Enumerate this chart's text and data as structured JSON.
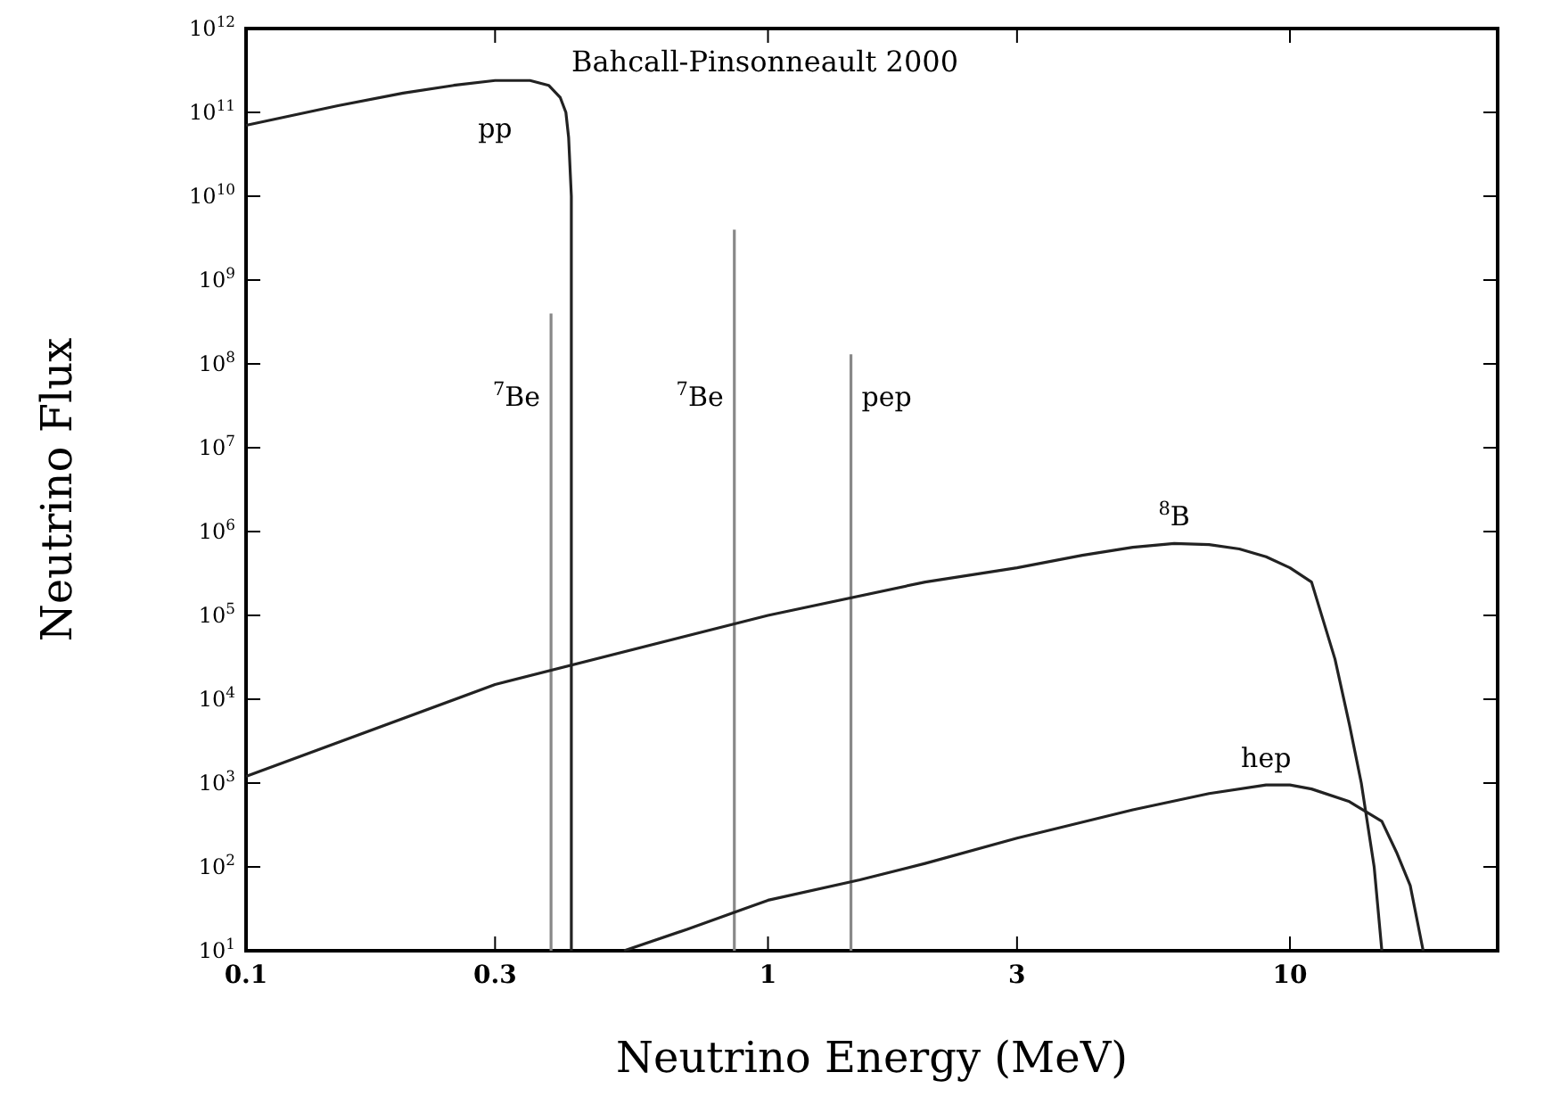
{
  "chart_data": {
    "type": "line",
    "title": "Bahcall-Pinsonneault 2000",
    "xlabel": "Neutrino Energy (MeV)",
    "ylabel": "Neutrino Flux",
    "log": "xy",
    "marker": "none",
    "line_style": "solid",
    "xlim": [
      0.1,
      25
    ],
    "xticks": [
      0.1,
      0.3,
      1,
      3,
      10
    ],
    "ylim": [
      10,
      1000000000000.0
    ],
    "yticks": [
      {
        "value": 10,
        "label": "10$^{1}$"
      },
      {
        "value": 100,
        "label": "10$^{2}$"
      },
      {
        "value": 1000,
        "label": "10$^{3}$"
      },
      {
        "value": 10000,
        "label": "10$^{4}$"
      },
      {
        "value": 100000,
        "label": "10$^{5}$"
      },
      {
        "value": 1000000,
        "label": "10$^{6}$"
      },
      {
        "value": 10000000,
        "label": "10$^{7}$"
      },
      {
        "value": 100000000,
        "label": "10$^{8}$"
      },
      {
        "value": 1000000000,
        "label": "10$^{9}$"
      },
      {
        "value": 10000000000,
        "label": "10$^{10}$"
      },
      {
        "value": 100000000000,
        "label": "10$^{11}$"
      },
      {
        "value": 1000000000000,
        "label": "10$^{12}$"
      }
    ],
    "series": [
      {
        "name": "pp",
        "color": "#222222",
        "x": [
          0.1,
          0.15,
          0.2,
          0.25,
          0.3,
          0.35,
          0.38,
          0.4,
          0.41,
          0.415,
          0.42,
          0.42
        ],
        "values": [
          70000000000,
          120000000000,
          170000000000,
          210000000000,
          240000000000,
          240000000000,
          210000000000,
          150000000000,
          100000000000,
          50000000000,
          10000000000,
          10
        ]
      },
      {
        "name": "$^{7}$Be",
        "color": "#888888",
        "x": [
          0.384,
          0.384
        ],
        "values": [
          10,
          400000000
        ]
      },
      {
        "name": "$^{7}$Be",
        "color": "#888888",
        "x": [
          0.862,
          0.862
        ],
        "values": [
          10,
          4000000000
        ]
      },
      {
        "name": "pep",
        "color": "#888888",
        "x": [
          1.442,
          1.442
        ],
        "values": [
          10,
          130000000
        ]
      },
      {
        "name": "$^{8}$B",
        "color": "#222222",
        "x": [
          0.1,
          0.3,
          1,
          2,
          3,
          4,
          5,
          6,
          7,
          8,
          9,
          10,
          11,
          12.2,
          13,
          13.7,
          14.5,
          15
        ],
        "values": [
          1200,
          15000,
          100000,
          250000,
          370000,
          520000,
          650000,
          720000,
          700000,
          620000,
          500000,
          370000,
          250000,
          30000,
          5000,
          1000,
          100,
          10
        ]
      },
      {
        "name": "hep",
        "color": "#222222",
        "x": [
          0.53,
          0.7,
          1,
          1.5,
          2,
          3,
          5,
          7,
          9,
          10,
          11,
          13,
          15,
          16,
          17,
          18
        ],
        "values": [
          10,
          18,
          40,
          70,
          110,
          220,
          480,
          750,
          950,
          950,
          850,
          600,
          350,
          150,
          60,
          10
        ]
      }
    ]
  }
}
